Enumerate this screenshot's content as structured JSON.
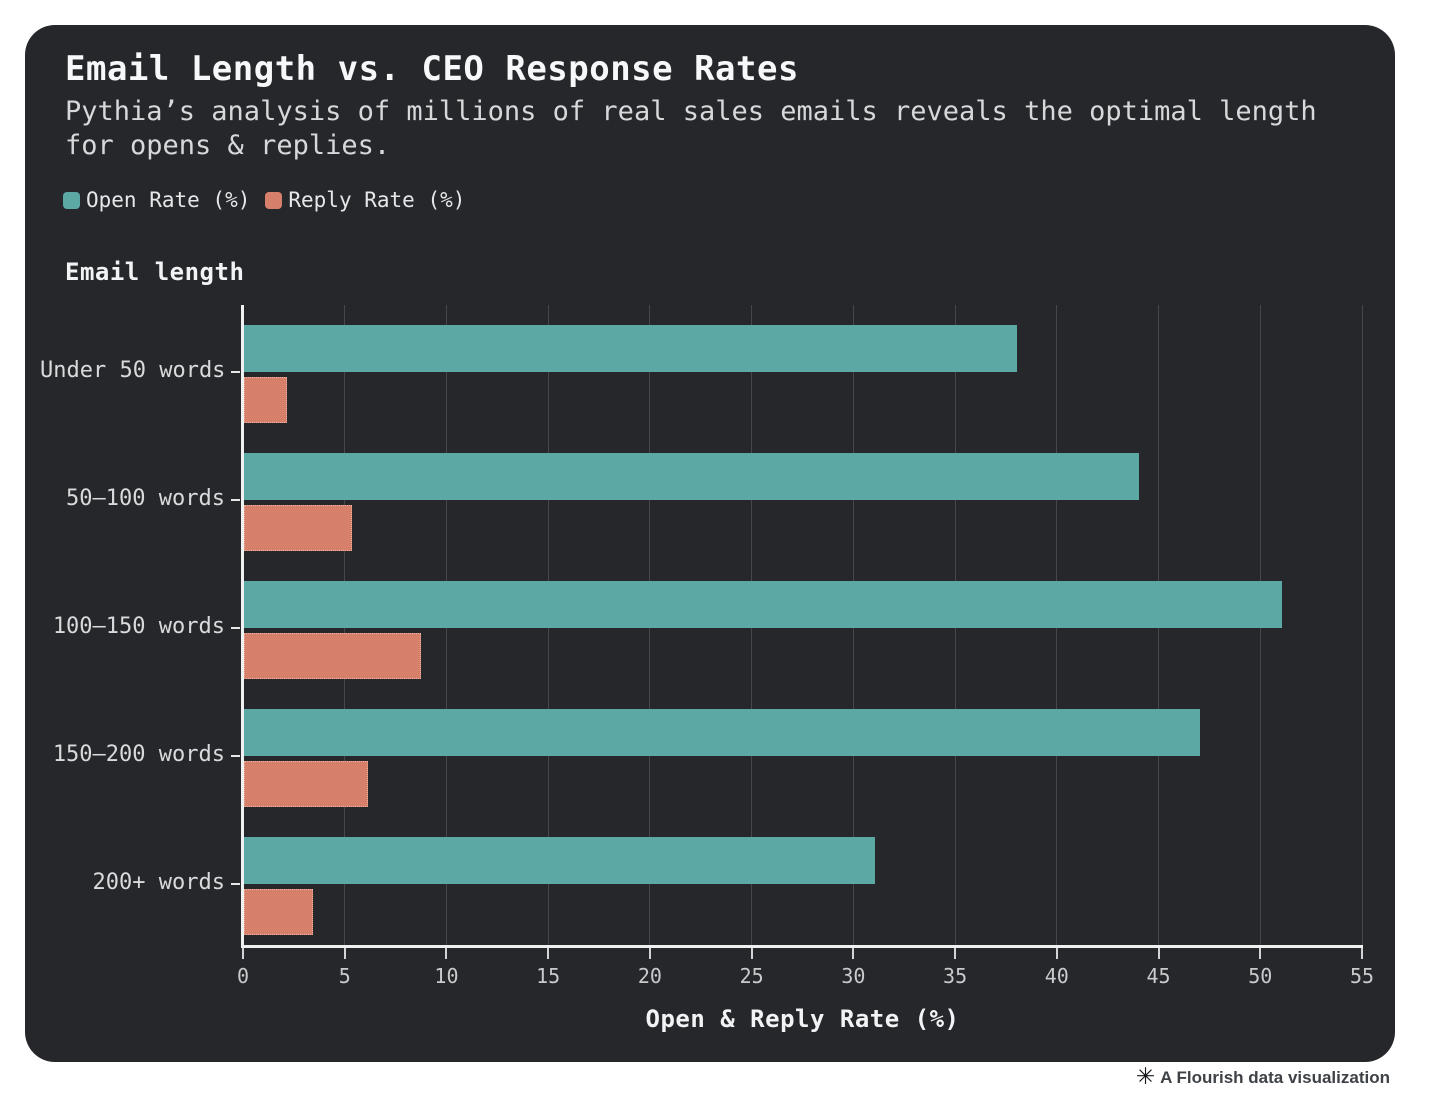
{
  "header": {
    "title": "Email Length vs. CEO Response Rates",
    "subtitle": "Pythia’s analysis of millions of real sales emails reveals the optimal length for opens & replies."
  },
  "legend": [
    {
      "label": "Open Rate (%)",
      "color": "#5ba8a5"
    },
    {
      "label": "Reply Rate (%)",
      "color": "#d6806b"
    }
  ],
  "chart_data": {
    "type": "bar",
    "orientation": "horizontal",
    "title": "Email Length vs. CEO Response Rates",
    "group_axis_label": "Email length",
    "xlabel": "Open & Reply Rate (%)",
    "categories": [
      "Under 50 words",
      "50–100 words",
      "100–150 words",
      "150–200 words",
      "200+ words"
    ],
    "series": [
      {
        "name": "Open Rate (%)",
        "color": "#5ba8a5",
        "values": [
          38,
          44,
          51,
          47,
          31
        ]
      },
      {
        "name": "Reply Rate (%)",
        "color": "#d6806b",
        "values": [
          2.1,
          5.3,
          8.7,
          6.1,
          3.4
        ]
      }
    ],
    "xlim": [
      0,
      55
    ],
    "xticks": [
      0,
      5,
      10,
      15,
      20,
      25,
      30,
      35,
      40,
      45,
      50,
      55
    ],
    "grid": true,
    "legend_position": "top"
  },
  "footer": {
    "credit": "A Flourish data visualization",
    "credit_icon_glyph": "✳",
    "credit_icon_name": "flourish-asterisk-icon"
  },
  "colors": {
    "card_background": "#26272b",
    "page_background": "#ffffff",
    "open_rate": "#5ba8a5",
    "reply_rate": "#d6806b",
    "gridline": "#45474c",
    "axis": "#f0f0f0"
  }
}
